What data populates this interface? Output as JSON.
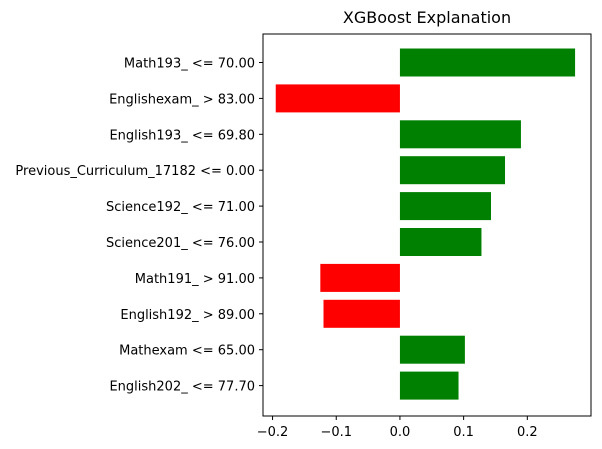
{
  "chart_data": {
    "type": "bar",
    "orientation": "horizontal",
    "title": "XGBoost Explanation",
    "xlabel": "",
    "ylabel": "",
    "categories": [
      "Math193_ <= 70.00",
      "Englishexam_ > 83.00",
      "English193_ <= 69.80",
      "Previous_Curriculum_17182 <= 0.00",
      "Science192_ <= 71.00",
      "Science201_ <= 76.00",
      "Math191_ > 91.00",
      "English192_ > 89.00",
      "Mathexam <= 65.00",
      "English202_ <= 77.70"
    ],
    "values": [
      0.275,
      -0.195,
      0.19,
      0.165,
      0.143,
      0.128,
      -0.125,
      -0.12,
      0.102,
      0.092
    ],
    "xlim": [
      -0.215,
      0.3
    ],
    "xticks": [
      "−0.2",
      "−0.1",
      "0.0",
      "0.1",
      "0.2"
    ],
    "xtick_values": [
      -0.2,
      -0.1,
      0.0,
      0.1,
      0.2
    ],
    "colors": {
      "positive": "#008000",
      "negative": "#ff0000"
    },
    "grid": false,
    "legend": "none"
  }
}
